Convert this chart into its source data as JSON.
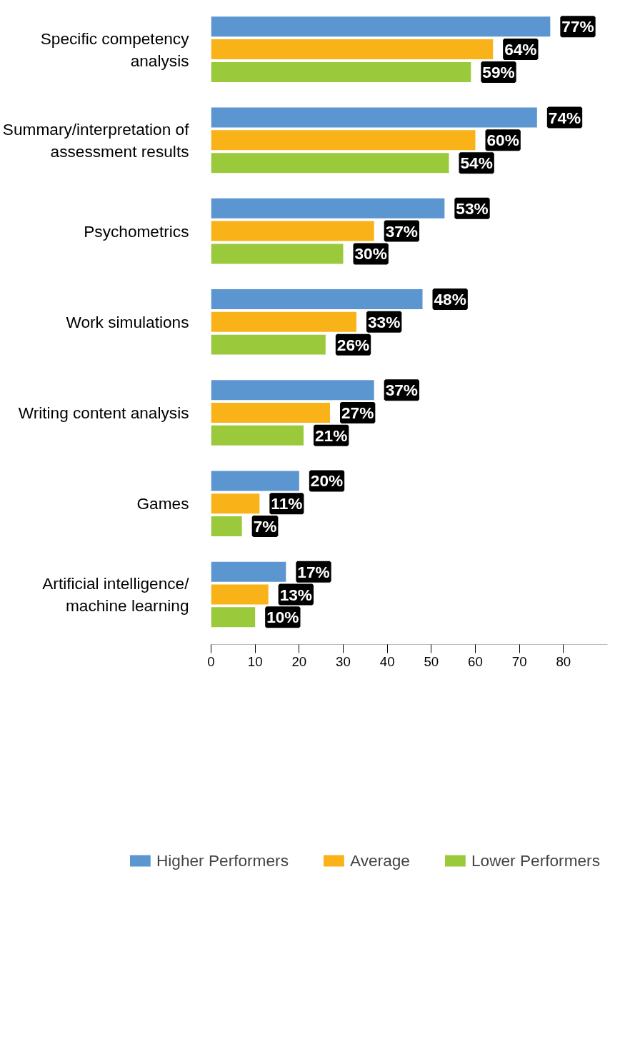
{
  "chart_data": {
    "type": "bar",
    "orientation": "horizontal",
    "categories": [
      "Specific competency analysis",
      "Summary/interpretation of assessment results",
      "Psychometrics",
      "Work simulations",
      "Writing content analysis",
      "Games",
      "Artificial intelligence/ machine learning"
    ],
    "series": [
      {
        "name": "Higher Performers",
        "color": "#5b96d0",
        "values": [
          77,
          74,
          53,
          48,
          37,
          20,
          17
        ],
        "value_labels": [
          "77%",
          "74%",
          "53%",
          "48%",
          "37%",
          "20%",
          "17%"
        ]
      },
      {
        "name": "Average",
        "color": "#f9b218",
        "values": [
          64,
          60,
          37,
          33,
          27,
          11,
          13
        ],
        "value_labels": [
          "64%",
          "60%",
          "37%",
          "33%",
          "27%",
          "11%",
          "13%"
        ]
      },
      {
        "name": "Lower Performers",
        "color": "#9aca3c",
        "values": [
          59,
          54,
          30,
          26,
          21,
          7,
          10
        ],
        "value_labels": [
          "59%",
          "54%",
          "30%",
          "26%",
          "21%",
          "7%",
          "10%"
        ]
      }
    ],
    "xlim": [
      0,
      90
    ],
    "xticks": [
      0,
      10,
      20,
      30,
      40,
      50,
      60,
      70,
      80
    ],
    "grid": false,
    "legend": "bottom"
  }
}
